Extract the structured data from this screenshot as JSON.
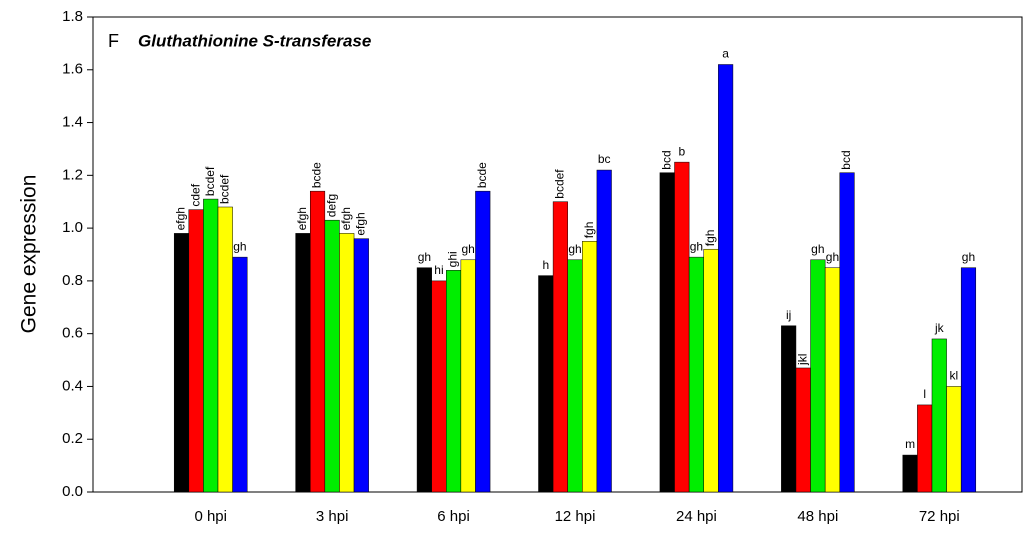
{
  "chart_data": {
    "type": "bar",
    "panel": "F",
    "title": "Gluthathionine S-transferase",
    "y_label": "Gene expression",
    "categories": [
      "0 hpi",
      "3 hpi",
      "6 hpi",
      "12 hpi",
      "24 hpi",
      "48 hpi",
      "72 hpi"
    ],
    "series": [
      {
        "color": "#000000",
        "values": [
          0.98,
          0.98,
          0.85,
          0.82,
          1.21,
          0.63,
          0.14
        ],
        "labels": [
          "efgh",
          "efgh",
          "gh",
          "h",
          "bcd",
          "ij",
          "m"
        ]
      },
      {
        "color": "#ff0000",
        "values": [
          1.07,
          1.14,
          0.8,
          1.1,
          1.25,
          0.47,
          0.33
        ],
        "labels": [
          "cdef",
          "bcde",
          "hi",
          "bcdef",
          "b",
          "jkl",
          "l"
        ]
      },
      {
        "color": "#00ee00",
        "values": [
          1.11,
          1.03,
          0.84,
          0.88,
          0.89,
          0.88,
          0.58
        ],
        "labels": [
          "bcdef",
          "defg",
          "ghi",
          "gh",
          "gh",
          "gh",
          "jk"
        ]
      },
      {
        "color": "#ffff00",
        "values": [
          1.08,
          0.98,
          0.88,
          0.95,
          0.92,
          0.85,
          0.4
        ],
        "labels": [
          "bcdef",
          "efgh",
          "gh",
          "fgh",
          "fgh",
          "gh",
          "kl"
        ]
      },
      {
        "color": "#0000ff",
        "values": [
          0.89,
          0.96,
          1.14,
          1.22,
          1.62,
          1.21,
          0.85
        ],
        "labels": [
          "gh",
          "efgh",
          "bcde",
          "bc",
          "a",
          "bcd",
          "gh"
        ]
      }
    ],
    "ylim": [
      0,
      1.8
    ],
    "yticks": [
      {
        "value": 0,
        "label": "0.0"
      },
      {
        "value": 0.2,
        "label": "0.2"
      },
      {
        "value": 0.4,
        "label": "0.4"
      },
      {
        "value": 0.6,
        "label": "0.6"
      },
      {
        "value": 0.8,
        "label": "0.8"
      },
      {
        "value": 1.0,
        "label": "1.0"
      },
      {
        "value": 1.2,
        "label": "1.2"
      },
      {
        "value": 1.4,
        "label": "1.4"
      },
      {
        "value": 1.6,
        "label": "1.6"
      },
      {
        "value": 1.8,
        "label": "1.8"
      }
    ]
  }
}
